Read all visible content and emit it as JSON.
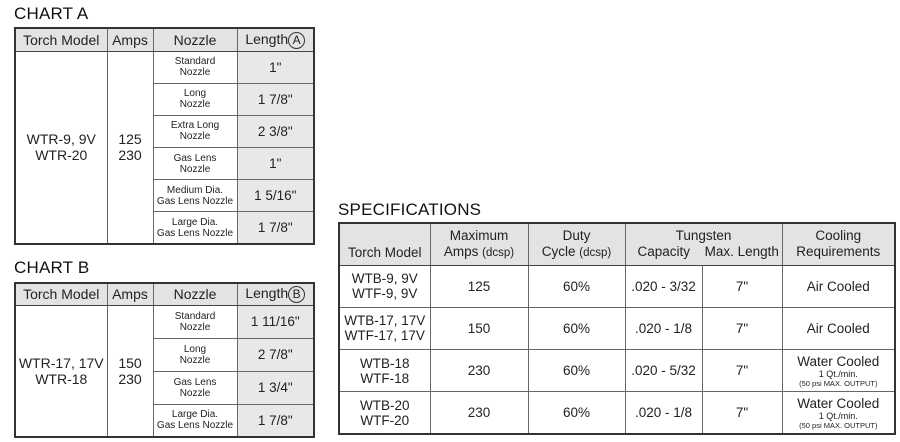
{
  "chart_a": {
    "title": "CHART A",
    "headers": {
      "torch_model": "Torch Model",
      "amps": "Amps",
      "nozzle": "Nozzle",
      "length": "Length",
      "length_marker": "A"
    },
    "torch_models": [
      "WTR-9, 9V",
      "WTR-20"
    ],
    "amps": [
      "125",
      "230"
    ],
    "rows": [
      {
        "nozzle": [
          "Standard",
          "Nozzle"
        ],
        "length": "1\""
      },
      {
        "nozzle": [
          "Long",
          "Nozzle"
        ],
        "length": "1 7/8\""
      },
      {
        "nozzle": [
          "Extra Long",
          "Nozzle"
        ],
        "length": "2 3/8\""
      },
      {
        "nozzle": [
          "Gas Lens",
          "Nozzle"
        ],
        "length": "1\""
      },
      {
        "nozzle": [
          "Medium Dia.",
          "Gas Lens Nozzle"
        ],
        "length": "1 5/16\""
      },
      {
        "nozzle": [
          "Large Dia.",
          "Gas Lens Nozzle"
        ],
        "length": "1 7/8\""
      }
    ]
  },
  "chart_b": {
    "title": "CHART B",
    "headers": {
      "torch_model": "Torch Model",
      "amps": "Amps",
      "nozzle": "Nozzle",
      "length": "Length",
      "length_marker": "B"
    },
    "torch_models": [
      "WTR-17, 17V",
      "WTR-18"
    ],
    "amps": [
      "150",
      "230"
    ],
    "rows": [
      {
        "nozzle": [
          "Standard",
          "Nozzle"
        ],
        "length": "1 11/16\""
      },
      {
        "nozzle": [
          "Long",
          "Nozzle"
        ],
        "length": "2 7/8\""
      },
      {
        "nozzle": [
          "Gas Lens",
          "Nozzle"
        ],
        "length": "1 3/4\""
      },
      {
        "nozzle": [
          "Large Dia.",
          "Gas Lens Nozzle"
        ],
        "length": "1 7/8\""
      }
    ]
  },
  "specifications": {
    "title": "SPECIFICATIONS",
    "headers": {
      "torch_model": "Torch Model",
      "max_amps": [
        "Maximum",
        "Amps",
        "(dcsp)"
      ],
      "duty_cycle": [
        "Duty",
        "Cycle",
        "(dcsp)"
      ],
      "tungsten": "Tungsten",
      "capacity": "Capacity",
      "max_length": "Max. Length",
      "cooling": [
        "Cooling",
        "Requirements"
      ]
    },
    "rows": [
      {
        "model": [
          "WTB-9, 9V",
          "WTF-9, 9V"
        ],
        "amps": "125",
        "duty": "60%",
        "capacity": ".020 - 3/32",
        "max_length": "7\"",
        "cooling": "Air Cooled",
        "cooling_note1": "",
        "cooling_note2": ""
      },
      {
        "model": [
          "WTB-17, 17V",
          "WTF-17, 17V"
        ],
        "amps": "150",
        "duty": "60%",
        "capacity": ".020 - 1/8",
        "max_length": "7\"",
        "cooling": "Air Cooled",
        "cooling_note1": "",
        "cooling_note2": ""
      },
      {
        "model": [
          "WTB-18",
          "WTF-18"
        ],
        "amps": "230",
        "duty": "60%",
        "capacity": ".020 - 5/32",
        "max_length": "7\"",
        "cooling": "Water Cooled",
        "cooling_note1": "1 Qt./min.",
        "cooling_note2": "(50 psi MAX. OUTPUT)"
      },
      {
        "model": [
          "WTB-20",
          "WTF-20"
        ],
        "amps": "230",
        "duty": "60%",
        "capacity": ".020 - 1/8",
        "max_length": "7\"",
        "cooling": "Water Cooled",
        "cooling_note1": "1 Qt./min.",
        "cooling_note2": "(50 psi MAX. OUTPUT)"
      }
    ]
  }
}
